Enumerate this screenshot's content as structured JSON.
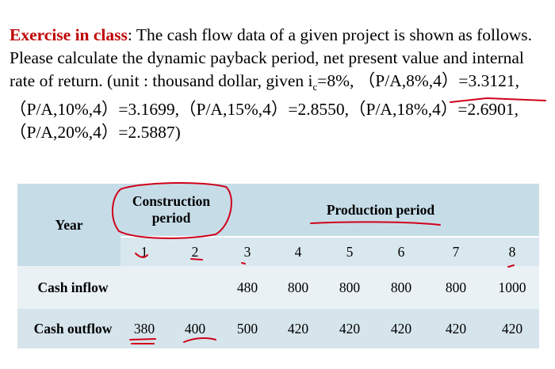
{
  "problem": {
    "lead": "Exercise in class",
    "text_before_sub": ": The cash flow data of a given project is shown as follows. Please calculate the dynamic payback period, net present value and internal rate of return. (unit : thousand  dollar, given i",
    "subscript": "c",
    "text_after_sub": "=8%, （P/A,8%,4）=3.3121,（P/A,10%,4）=3.1699,（P/A,15%,4）=2.8550,（P/A,18%,4）=2.6901,（P/A,20%,4）=2.5887)"
  },
  "table": {
    "year_label": "Year",
    "construction_label": "Construction period",
    "production_label": "Production period",
    "years": [
      "1",
      "2",
      "3",
      "4",
      "5",
      "6",
      "7",
      "8"
    ],
    "rows": [
      {
        "label": "Cash inflow",
        "values": [
          "",
          "",
          "480",
          "800",
          "800",
          "800",
          "800",
          "1000"
        ]
      },
      {
        "label": "Cash outflow",
        "values": [
          "380",
          "400",
          "500",
          "420",
          "420",
          "420",
          "420",
          "420"
        ]
      }
    ]
  },
  "colors": {
    "lead_text": "#c00000",
    "handwriting": "#d0021b",
    "table_header_bg": "#c6dde8",
    "table_row_light": "#e9f1f5",
    "table_row_dark": "#d6e5ec"
  }
}
